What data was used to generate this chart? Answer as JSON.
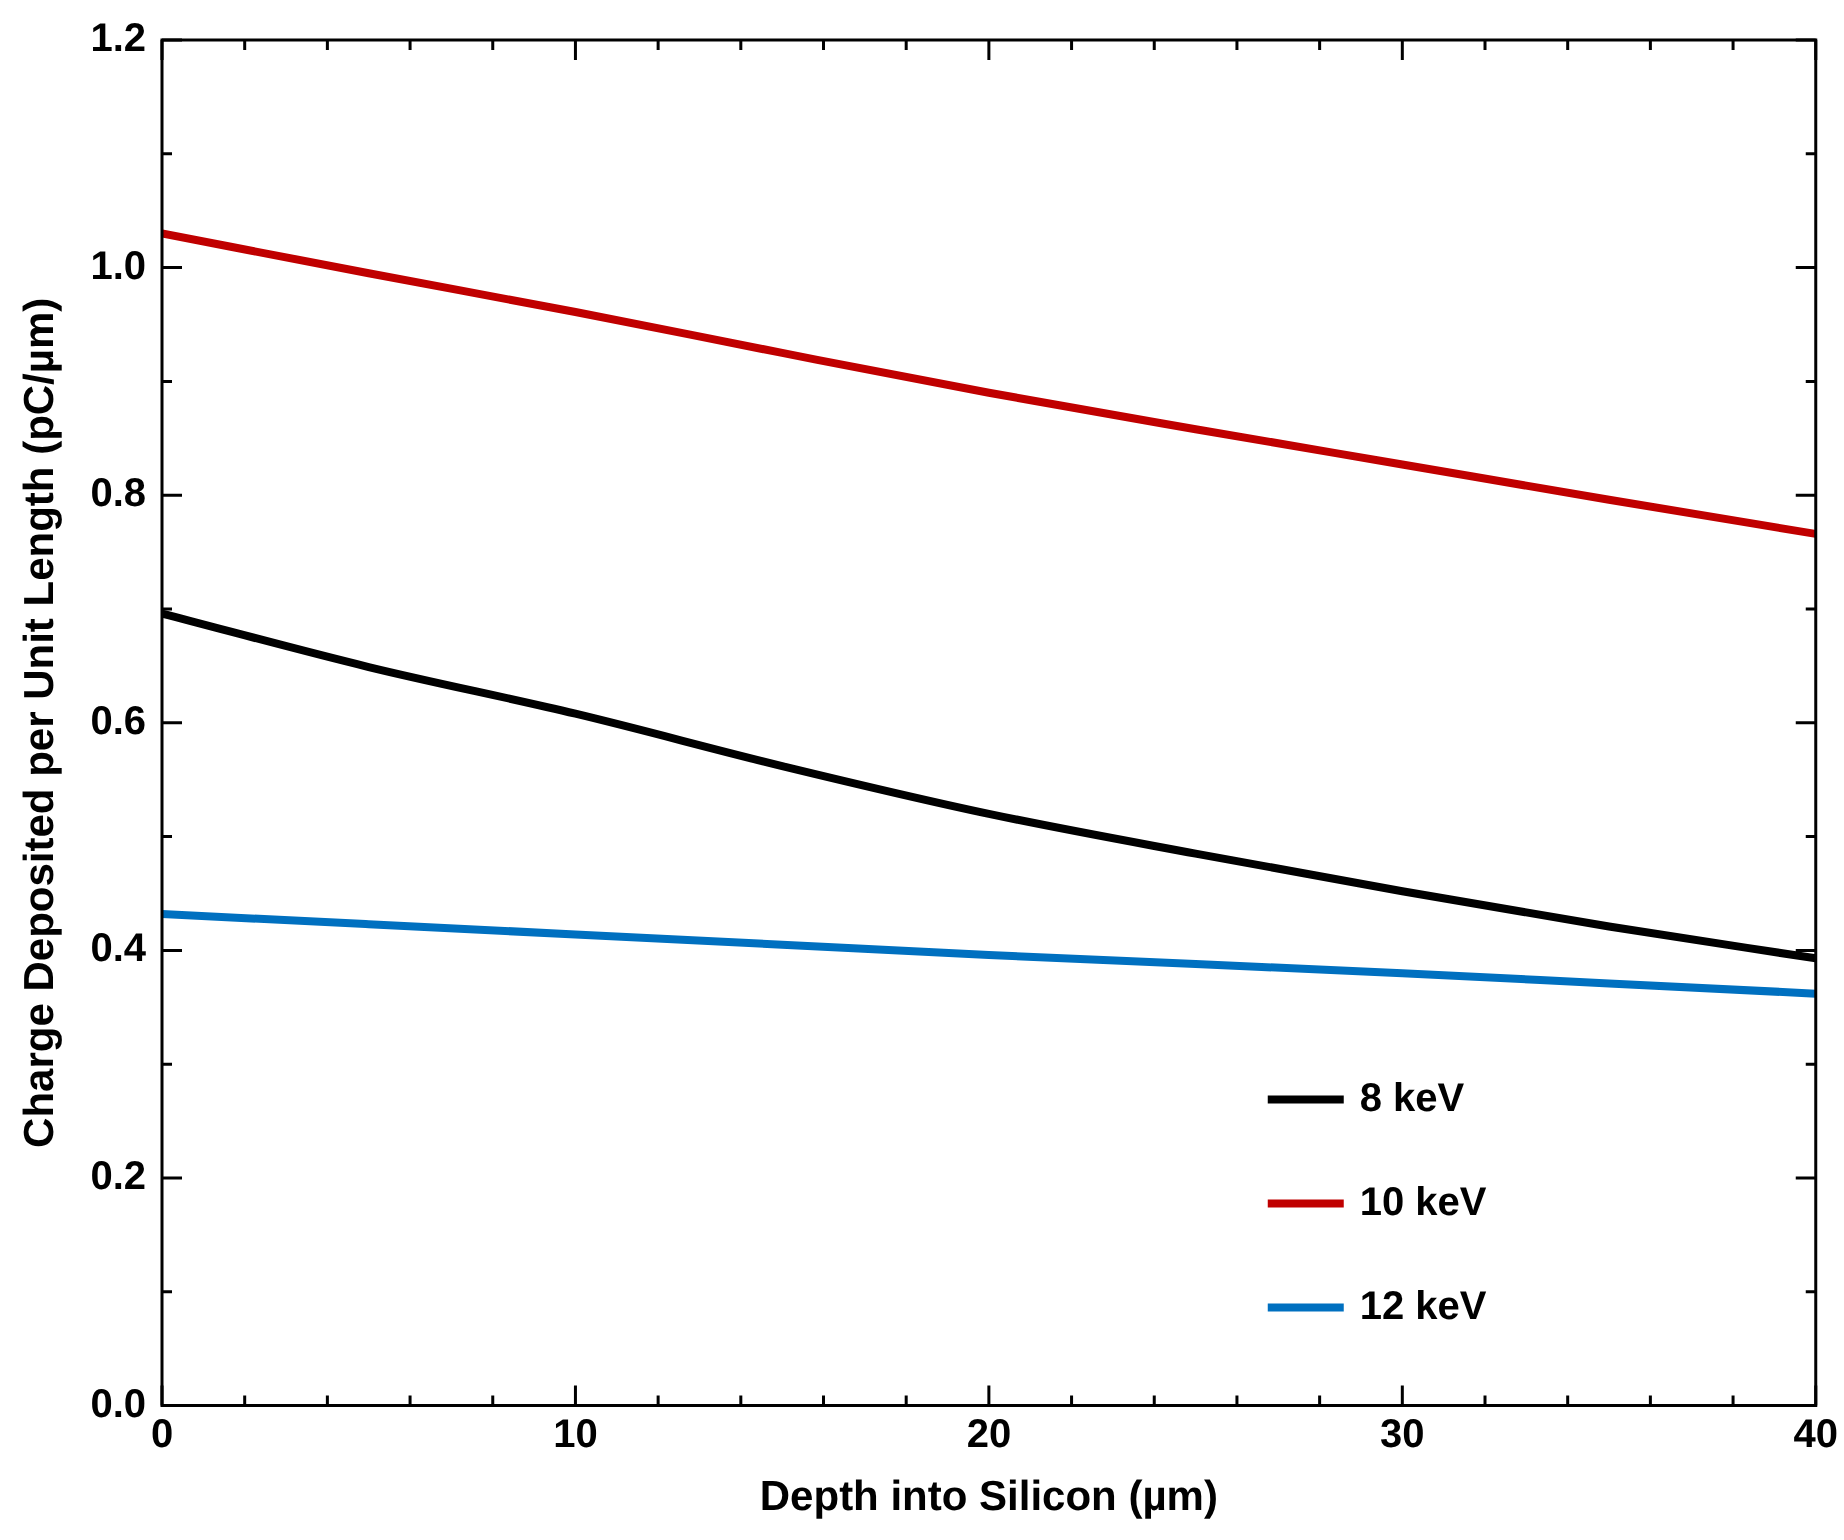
{
  "chart_data": {
    "type": "line",
    "xlabel": "Depth into Silicon (µm)",
    "ylabel": "Charge Deposited per Unit Length (pC/µm)",
    "x": [
      0,
      5,
      10,
      15,
      20,
      25,
      30,
      35,
      40
    ],
    "series": [
      {
        "name": "8 keV",
        "color": "#000000",
        "values": [
          0.696,
          0.649,
          0.608,
          0.562,
          0.52,
          0.485,
          0.452,
          0.421,
          0.393
        ]
      },
      {
        "name": "10 keV",
        "color": "#c00000",
        "values": [
          1.03,
          0.995,
          0.961,
          0.925,
          0.89,
          0.858,
          0.827,
          0.796,
          0.766
        ]
      },
      {
        "name": "12 keV",
        "color": "#0070c0",
        "values": [
          0.432,
          0.423,
          0.414,
          0.405,
          0.396,
          0.388,
          0.38,
          0.371,
          0.362
        ]
      }
    ],
    "xlim": [
      0,
      40
    ],
    "xticks": [
      0,
      10,
      20,
      30,
      40
    ],
    "ylim": [
      0,
      1.2
    ],
    "yticks": [
      {
        "value": 0,
        "label": "0.0"
      },
      {
        "value": 0.2,
        "label": "0.2"
      },
      {
        "value": 0.4,
        "label": "0.4"
      },
      {
        "value": 0.6,
        "label": "0.6"
      },
      {
        "value": 0.8,
        "label": "0.8"
      },
      {
        "value": 1.0,
        "label": "1.0"
      },
      {
        "value": 1.2,
        "label": "1.2"
      }
    ],
    "grid": false,
    "legend": "bottom right",
    "marker": "none",
    "line_style": "solid"
  }
}
